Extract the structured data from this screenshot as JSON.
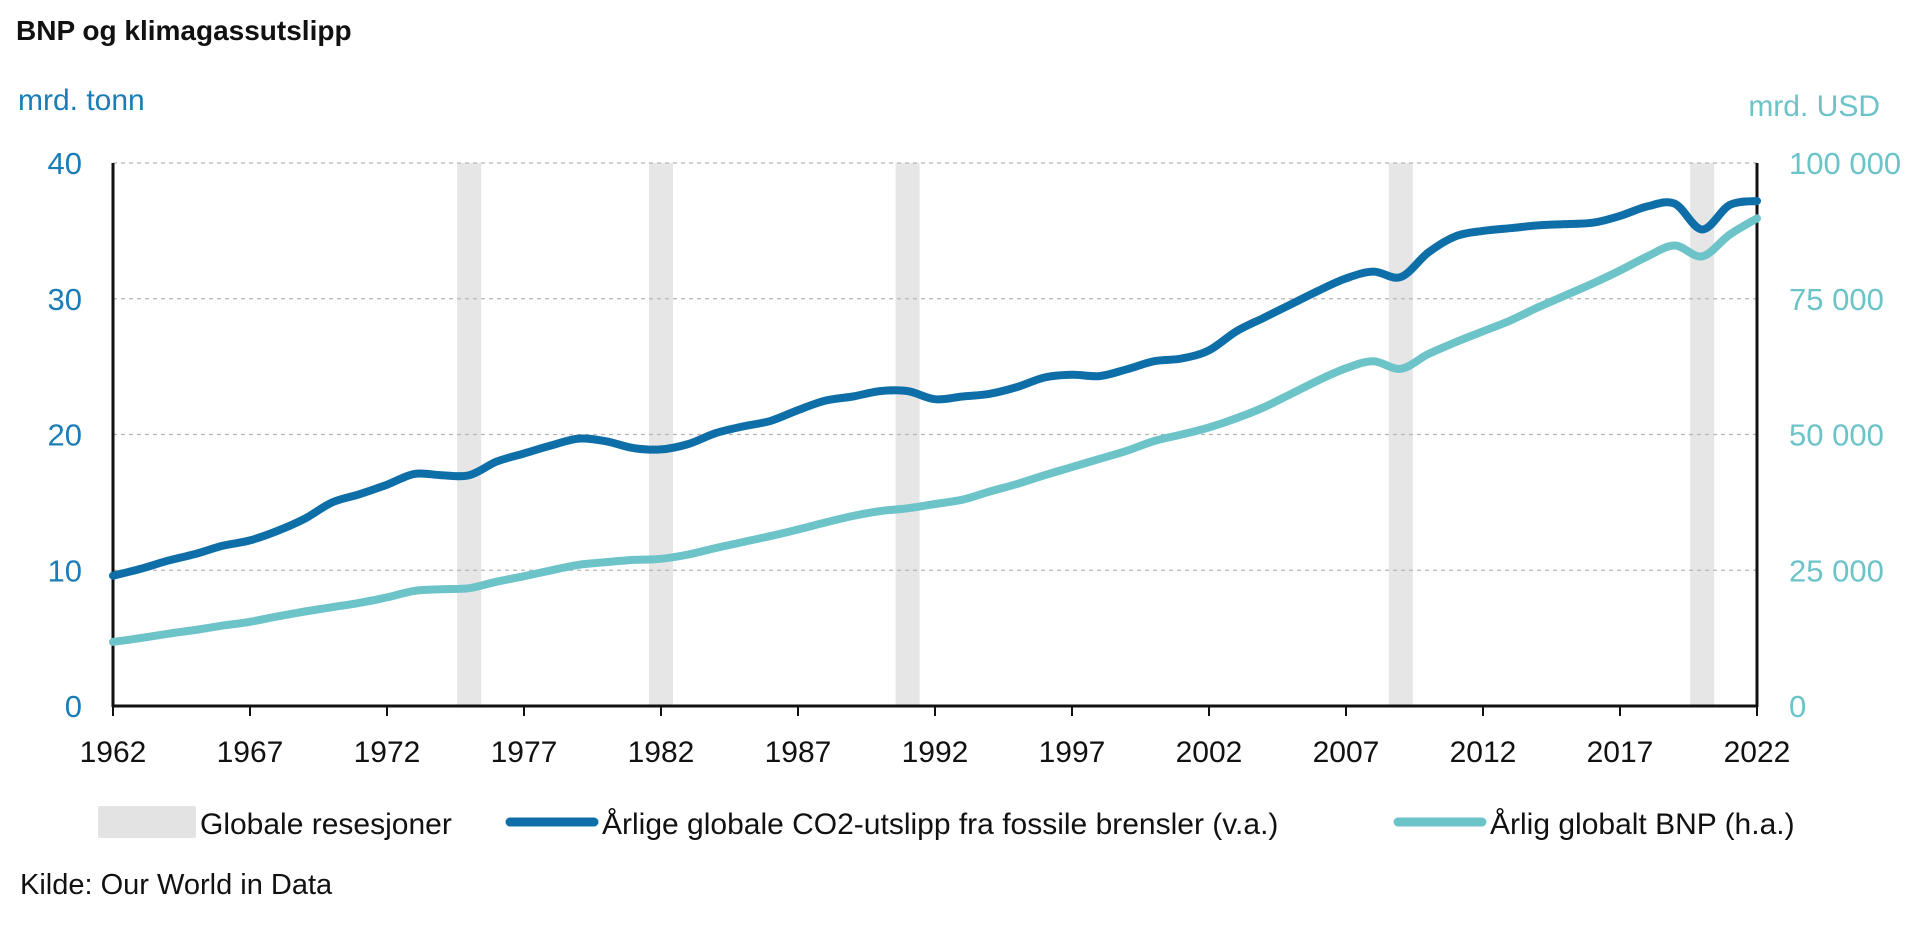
{
  "chart_data": {
    "type": "line",
    "title": "BNP og klimagassutslipp",
    "source": "Kilde: Our World in Data",
    "x_ticks": [
      1962,
      1967,
      1972,
      1977,
      1982,
      1987,
      1992,
      1997,
      2002,
      2007,
      2012,
      2017,
      2022
    ],
    "xlim": [
      1962,
      2022
    ],
    "y_left": {
      "label": "mrd. tonn",
      "ticks": [
        0,
        10,
        20,
        30,
        40
      ],
      "tick_labels": [
        "0",
        "10",
        "20",
        "30",
        "40"
      ],
      "ylim": [
        0,
        40
      ],
      "color": "#1a7db5"
    },
    "y_right": {
      "label": "mrd. USD",
      "ticks": [
        0,
        25000,
        50000,
        75000,
        100000
      ],
      "tick_labels": [
        "0",
        "25 000",
        "50 000",
        "75 000",
        "100 000"
      ],
      "ylim": [
        0,
        100000
      ],
      "color": "#6cc3c8"
    },
    "grid": true,
    "recessions": [
      1975,
      1982,
      1991,
      2009,
      2020
    ],
    "x": [
      1962,
      1963,
      1964,
      1965,
      1966,
      1967,
      1968,
      1969,
      1970,
      1971,
      1972,
      1973,
      1974,
      1975,
      1976,
      1977,
      1978,
      1979,
      1980,
      1981,
      1982,
      1983,
      1984,
      1985,
      1986,
      1987,
      1988,
      1989,
      1990,
      1991,
      1992,
      1993,
      1994,
      1995,
      1996,
      1997,
      1998,
      1999,
      2000,
      2001,
      2002,
      2003,
      2004,
      2005,
      2006,
      2007,
      2008,
      2009,
      2010,
      2011,
      2012,
      2013,
      2014,
      2015,
      2016,
      2017,
      2018,
      2019,
      2020,
      2021,
      2022
    ],
    "series": [
      {
        "name": "Årlige globale CO2-utslipp fra fossile brensler (v.a.)",
        "axis": "left",
        "color": "#0e6fa8",
        "values": [
          9.6,
          10.1,
          10.7,
          11.2,
          11.8,
          12.2,
          12.9,
          13.8,
          15.0,
          15.6,
          16.3,
          17.1,
          17.0,
          17.0,
          18.0,
          18.6,
          19.2,
          19.7,
          19.5,
          19.0,
          18.9,
          19.3,
          20.1,
          20.6,
          21.0,
          21.8,
          22.5,
          22.8,
          23.2,
          23.2,
          22.6,
          22.8,
          23.0,
          23.5,
          24.2,
          24.4,
          24.3,
          24.8,
          25.4,
          25.6,
          26.2,
          27.6,
          28.6,
          29.6,
          30.6,
          31.5,
          32.0,
          31.6,
          33.4,
          34.6,
          35.0,
          35.2,
          35.4,
          35.5,
          35.6,
          36.1,
          36.8,
          37.0,
          35.1,
          36.9,
          37.2
        ]
      },
      {
        "name": "Årlig globalt BNP (h.a.)",
        "axis": "right",
        "color": "#6cc3c8",
        "values": [
          11800,
          12500,
          13300,
          14000,
          14800,
          15500,
          16500,
          17400,
          18200,
          19000,
          20000,
          21200,
          21500,
          21700,
          22900,
          23900,
          25000,
          26000,
          26500,
          26900,
          27100,
          27900,
          29100,
          30200,
          31300,
          32500,
          33800,
          35000,
          35900,
          36400,
          37200,
          38000,
          39500,
          40900,
          42500,
          44000,
          45500,
          47000,
          48800,
          50000,
          51300,
          53000,
          55000,
          57500,
          60000,
          62200,
          63500,
          62100,
          64800,
          67000,
          69000,
          71000,
          73400,
          75600,
          77800,
          80200,
          82800,
          84800,
          82800,
          86800,
          89800
        ]
      }
    ],
    "legend": {
      "placement": "bottom",
      "recession_label": "Globale resesjoner"
    }
  }
}
